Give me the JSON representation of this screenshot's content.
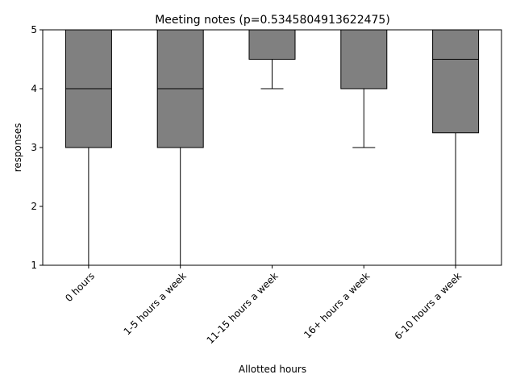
{
  "chart_data": {
    "type": "box",
    "title": "Meeting notes (p=0.5345804913622475)",
    "xlabel": "Allotted hours",
    "ylabel": "responses",
    "ylim": [
      1,
      5
    ],
    "yticks": [
      "1",
      "2",
      "3",
      "4",
      "5"
    ],
    "categories": [
      "0 hours",
      "1-5 hours a week",
      "11-15 hours a week",
      "16+ hours a week",
      "6-10 hours a week"
    ],
    "boxes": [
      {
        "whislo": 1,
        "q1": 3,
        "med": 4,
        "q3": 5,
        "whishi": 5
      },
      {
        "whislo": 1,
        "q1": 3,
        "med": 4,
        "q3": 5,
        "whishi": 5
      },
      {
        "whislo": 4,
        "q1": 4.5,
        "med": 5,
        "q3": 5,
        "whishi": 5
      },
      {
        "whislo": 3,
        "q1": 4,
        "med": 5,
        "q3": 5,
        "whishi": 5
      },
      {
        "whislo": 1,
        "q1": 3.25,
        "med": 4.5,
        "q3": 5,
        "whishi": 5
      }
    ],
    "box_color": "#808080",
    "edge_color": "#000000",
    "grid": false,
    "legend": "none"
  }
}
